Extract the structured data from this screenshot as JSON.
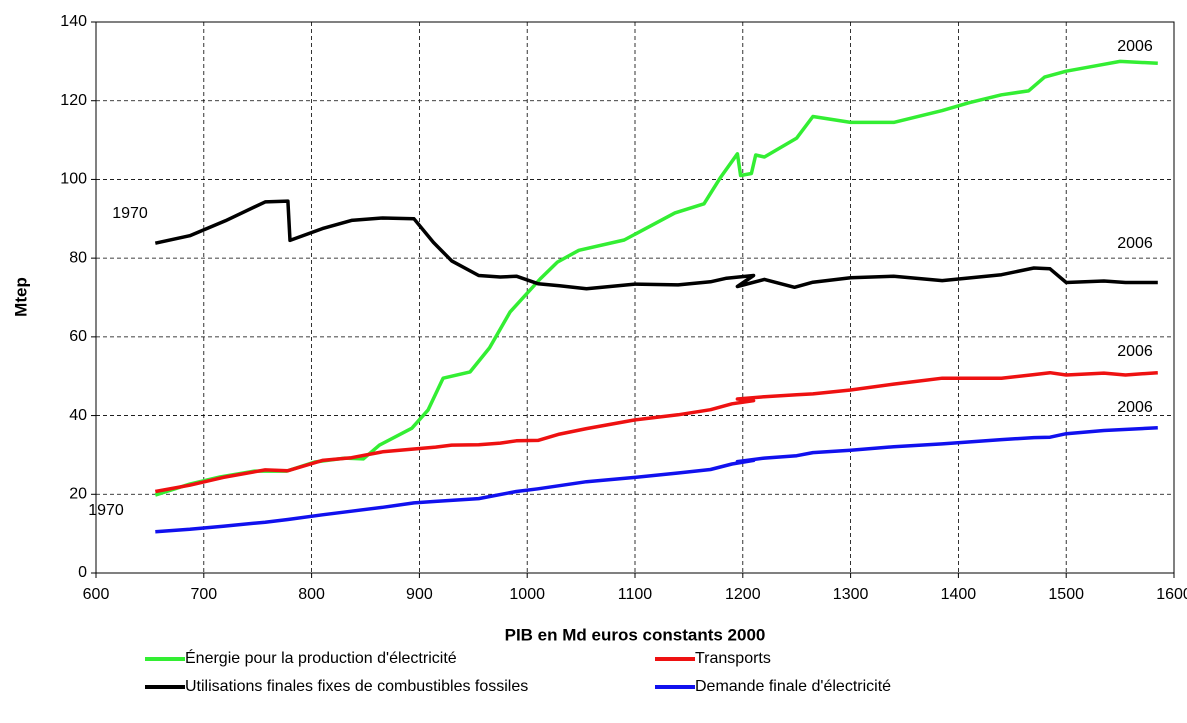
{
  "chart_data": {
    "type": "line",
    "xlabel": "PIB en Md euros constants 2000",
    "ylabel": "Mtep",
    "xlim": [
      600,
      1600
    ],
    "xticks": [
      600,
      700,
      800,
      900,
      1000,
      1100,
      1200,
      1300,
      1400,
      1500,
      1600
    ],
    "ylim": [
      0,
      140
    ],
    "yticks": [
      0,
      20,
      40,
      60,
      80,
      100,
      120,
      140
    ],
    "grid": true,
    "annotations": [
      "1970",
      "1970",
      "2006",
      "2006",
      "2006",
      "2006"
    ],
    "series": [
      {
        "name": "Énergie pour la production d'électricité",
        "color": "#33ee33",
        "x": [
          655,
          687,
          715,
          747,
          777,
          803,
          831,
          848,
          863,
          893,
          908,
          922,
          947,
          965,
          984,
          1012,
          1028,
          1048,
          1090,
          1137,
          1164,
          1179,
          1195,
          1198,
          1208,
          1212,
          1220,
          1250,
          1265,
          1300,
          1340,
          1385,
          1410,
          1440,
          1465,
          1480,
          1500,
          1530,
          1550,
          1585
        ],
        "values": [
          19.8,
          22.6,
          24.4,
          25.9,
          25.9,
          28.2,
          29.2,
          29,
          32.5,
          36.8,
          41.4,
          49.5,
          51.1,
          57.2,
          66.3,
          74.7,
          79,
          82,
          84.6,
          91.5,
          93.8,
          100.4,
          106.5,
          101,
          101.5,
          106.2,
          105.7,
          110.5,
          116,
          114.5,
          114.5,
          117.5,
          119.5,
          121.5,
          122.5,
          126,
          127.5,
          129,
          130,
          129.5
        ]
      },
      {
        "name": "Transports",
        "color": "#ee1111",
        "x": [
          655,
          687,
          718,
          757,
          778,
          810,
          837,
          866,
          895,
          915,
          930,
          955,
          975,
          990,
          1010,
          1030,
          1055,
          1100,
          1140,
          1170,
          1190,
          1210,
          1195,
          1220,
          1250,
          1265,
          1300,
          1340,
          1385,
          1440,
          1470,
          1485,
          1500,
          1535,
          1555,
          1585
        ],
        "values": [
          20.7,
          22.3,
          24.3,
          26.2,
          26,
          28.6,
          29.3,
          30.8,
          31.5,
          32,
          32.5,
          32.6,
          33,
          33.6,
          33.7,
          35.3,
          36.7,
          38.9,
          40.2,
          41.5,
          43,
          43.8,
          44.2,
          44.8,
          45.3,
          45.5,
          46.5,
          48,
          49.5,
          49.5,
          50.4,
          50.9,
          50.3,
          50.8,
          50.3,
          50.9
        ]
      },
      {
        "name": "Utilisations finales fixes de combustibles fossiles",
        "color": "#000000",
        "x": [
          655,
          687,
          720,
          757,
          778,
          780,
          810,
          837,
          866,
          895,
          913,
          930,
          955,
          975,
          990,
          1010,
          1030,
          1055,
          1100,
          1140,
          1170,
          1185,
          1210,
          1195,
          1220,
          1248,
          1265,
          1300,
          1340,
          1385,
          1440,
          1470,
          1485,
          1500,
          1535,
          1555,
          1585
        ],
        "values": [
          83.8,
          85.7,
          89.5,
          94.3,
          94.5,
          84.5,
          87.5,
          89.6,
          90.2,
          90,
          84,
          79.3,
          75.6,
          75.2,
          75.4,
          73.5,
          73,
          72.2,
          73.4,
          73.2,
          74,
          74.9,
          75.6,
          72.8,
          74.6,
          72.6,
          73.9,
          75,
          75.4,
          74.3,
          75.8,
          77.5,
          77.3,
          73.8,
          74.2,
          73.8,
          73.8
        ]
      },
      {
        "name": "Demande finale d'électricité",
        "color": "#1111ee",
        "x": [
          655,
          687,
          718,
          757,
          778,
          810,
          837,
          866,
          895,
          915,
          955,
          990,
          1010,
          1055,
          1100,
          1140,
          1170,
          1190,
          1210,
          1195,
          1220,
          1250,
          1265,
          1300,
          1340,
          1385,
          1440,
          1470,
          1485,
          1500,
          1535,
          1585
        ],
        "values": [
          10.5,
          11.1,
          11.9,
          12.9,
          13.6,
          14.8,
          15.7,
          16.7,
          17.8,
          18.2,
          18.9,
          20.7,
          21.4,
          23.2,
          24.3,
          25.4,
          26.3,
          27.7,
          28.6,
          28.3,
          29.2,
          29.8,
          30.6,
          31.2,
          32.1,
          32.8,
          33.9,
          34.4,
          34.5,
          35.4,
          36.2,
          36.9
        ]
      }
    ]
  }
}
